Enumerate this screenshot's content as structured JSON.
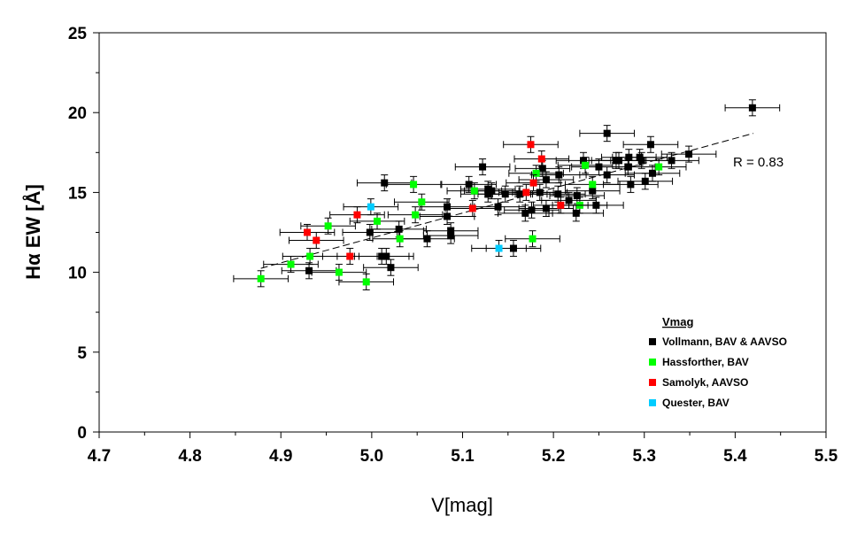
{
  "chart_data": {
    "type": "scatter",
    "xlabel": "V[mag]",
    "ylabel": "Hα EW [Å]",
    "xlim": [
      4.7,
      5.5
    ],
    "ylim": [
      0,
      25
    ],
    "xticks": [
      "4.7",
      "4.8",
      "4.9",
      "5.0",
      "5.1",
      "5.2",
      "5.3",
      "5.4",
      "5.5"
    ],
    "yticks": [
      "0",
      "5",
      "10",
      "15",
      "20",
      "25"
    ],
    "annotation": "R = 0.83",
    "legend_title": "Vmag",
    "legend_position": "bottom-right",
    "error_bars": {
      "x": 0.03,
      "y": 0.5
    },
    "trendline": {
      "x": [
        4.878,
        5.42
      ],
      "y": [
        10.25,
        18.7
      ]
    },
    "series": [
      {
        "name": "Vollmann, BAV & AAVSO",
        "color": "#000000",
        "points": [
          [
            4.931,
            10.1
          ],
          [
            4.998,
            12.5
          ],
          [
            5.011,
            11.0
          ],
          [
            5.016,
            11.0
          ],
          [
            5.014,
            15.6
          ],
          [
            5.021,
            10.3
          ],
          [
            5.03,
            12.7
          ],
          [
            5.061,
            12.1
          ],
          [
            5.083,
            14.1
          ],
          [
            5.083,
            13.5
          ],
          [
            5.087,
            12.6
          ],
          [
            5.087,
            12.3
          ],
          [
            5.107,
            15.5
          ],
          [
            5.122,
            16.6
          ],
          [
            5.128,
            15.2
          ],
          [
            5.132,
            15.1
          ],
          [
            5.128,
            14.9
          ],
          [
            5.139,
            14.1
          ],
          [
            5.147,
            14.9
          ],
          [
            5.156,
            11.5
          ],
          [
            5.163,
            14.9
          ],
          [
            5.169,
            13.7
          ],
          [
            5.176,
            13.9
          ],
          [
            5.185,
            15.0
          ],
          [
            5.188,
            16.5
          ],
          [
            5.192,
            15.8
          ],
          [
            5.192,
            14.0
          ],
          [
            5.206,
            16.1
          ],
          [
            5.205,
            14.9
          ],
          [
            5.217,
            14.5
          ],
          [
            5.225,
            13.7
          ],
          [
            5.226,
            14.8
          ],
          [
            5.233,
            17.0
          ],
          [
            5.243,
            15.1
          ],
          [
            5.247,
            14.2
          ],
          [
            5.25,
            16.6
          ],
          [
            5.259,
            18.7
          ],
          [
            5.259,
            16.1
          ],
          [
            5.269,
            17.0
          ],
          [
            5.272,
            17.0
          ],
          [
            5.283,
            17.2
          ],
          [
            5.282,
            16.6
          ],
          [
            5.285,
            15.5
          ],
          [
            5.295,
            17.2
          ],
          [
            5.297,
            17.0
          ],
          [
            5.301,
            15.7
          ],
          [
            5.307,
            18.0
          ],
          [
            5.309,
            16.2
          ],
          [
            5.33,
            17.0
          ],
          [
            5.349,
            17.4
          ],
          [
            5.419,
            20.3
          ]
        ]
      },
      {
        "name": "Hassforther, BAV",
        "color": "#00ff00",
        "points": [
          [
            4.878,
            9.6
          ],
          [
            4.911,
            10.5
          ],
          [
            4.932,
            11.0
          ],
          [
            4.952,
            12.9
          ],
          [
            4.964,
            10.0
          ],
          [
            4.994,
            9.4
          ],
          [
            5.006,
            13.2
          ],
          [
            5.031,
            12.1
          ],
          [
            5.046,
            15.5
          ],
          [
            5.048,
            13.6
          ],
          [
            5.055,
            14.4
          ],
          [
            5.113,
            15.1
          ],
          [
            5.177,
            12.1
          ],
          [
            5.181,
            16.2
          ],
          [
            5.235,
            16.7
          ],
          [
            5.243,
            15.5
          ],
          [
            5.229,
            14.2
          ],
          [
            5.316,
            16.6
          ]
        ]
      },
      {
        "name": "Samolyk, AAVSO",
        "color": "#ff0000",
        "points": [
          [
            4.929,
            12.5
          ],
          [
            4.939,
            12.0
          ],
          [
            4.984,
            13.6
          ],
          [
            4.976,
            11.0
          ],
          [
            5.111,
            14.0
          ],
          [
            5.17,
            15.0
          ],
          [
            5.175,
            18.0
          ],
          [
            5.178,
            15.6
          ],
          [
            5.187,
            17.1
          ],
          [
            5.208,
            14.2
          ]
        ]
      },
      {
        "name": "Quester, BAV",
        "color": "#00ccff",
        "points": [
          [
            4.999,
            14.1
          ],
          [
            5.14,
            11.5
          ]
        ]
      }
    ]
  }
}
